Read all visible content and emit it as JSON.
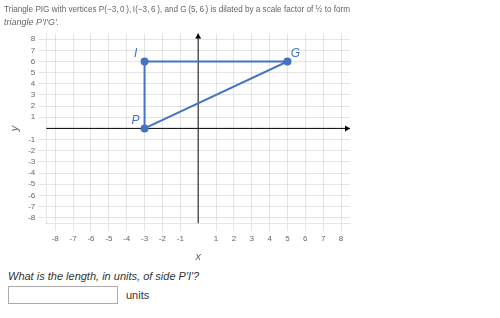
{
  "chart_data": {
    "type": "line",
    "title": "Triangle PIG with vertices P(−3, 0 ), I(−3, 6 ), and G (5, 6 ) is dilated by a scale factor of ½ to form",
    "subtitle": "triangle P′I′G′.",
    "x_label": "x",
    "y_label": "y",
    "x": [
      -3,
      -3,
      5
    ],
    "values": [
      0,
      6,
      6
    ],
    "point_labels": [
      "P",
      "I",
      "G"
    ],
    "color": "#4472C4",
    "xlim": [
      -8.5,
      8.5
    ],
    "ylim": [
      -8.5,
      8.5
    ],
    "xticks": [
      -8,
      -7,
      -6,
      -5,
      -4,
      -3,
      -2,
      -1,
      1,
      2,
      3,
      4,
      5,
      6,
      7,
      8
    ],
    "yticks": [
      -8,
      -7,
      -6,
      -5,
      -4,
      -3,
      -2,
      -1,
      1,
      2,
      3,
      4,
      5,
      6,
      7,
      8
    ],
    "grid": true,
    "question": "What is the length, in units, of side P′I′?",
    "answer_label": "units"
  }
}
